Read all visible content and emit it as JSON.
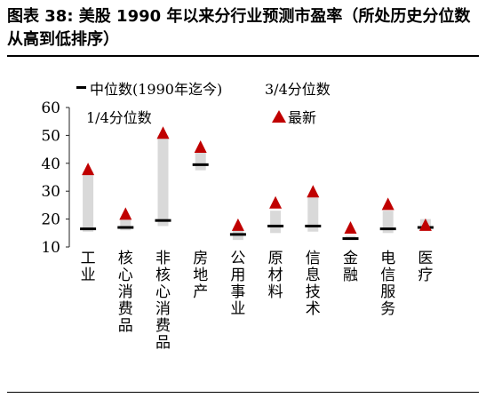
{
  "title": "图表 38:  美股 1990 年以来分行业预测市盈率（所处历史分位数从高到低排序）",
  "chart_data": {
    "type": "bar",
    "ylim": [
      10,
      60
    ],
    "yticks": [
      10,
      20,
      30,
      40,
      50,
      60
    ],
    "grid": false,
    "legend_position": "top",
    "colors": {
      "range": "#d9d9d9",
      "median": "#000000",
      "latest": "#c00000"
    },
    "legend": {
      "median": "中位数(1990年迄今)",
      "q3": "3/4分位数",
      "q1": "1/4分位数",
      "latest": "最新"
    },
    "categories": [
      "工业",
      "核心消费品",
      "非核心消费品",
      "房地产",
      "公用事业",
      "原材料",
      "信息技术",
      "金融",
      "电信服务",
      "医疗"
    ],
    "series": [
      {
        "name": "1/4分位数",
        "values": [
          15.5,
          16,
          17.5,
          37.5,
          12.5,
          15,
          15.5,
          12.5,
          15,
          16
        ]
      },
      {
        "name": "3/4分位数",
        "values": [
          37,
          20,
          50,
          44,
          16,
          23,
          28,
          14,
          23,
          20
        ]
      },
      {
        "name": "中位数(1990年迄今)",
        "values": [
          16.5,
          17,
          19.5,
          39.5,
          14.5,
          17.5,
          17.5,
          13,
          16.5,
          17
        ]
      },
      {
        "name": "最新",
        "values": [
          38,
          22,
          51,
          46,
          18,
          26,
          30,
          17,
          25.5,
          18
        ]
      }
    ]
  }
}
